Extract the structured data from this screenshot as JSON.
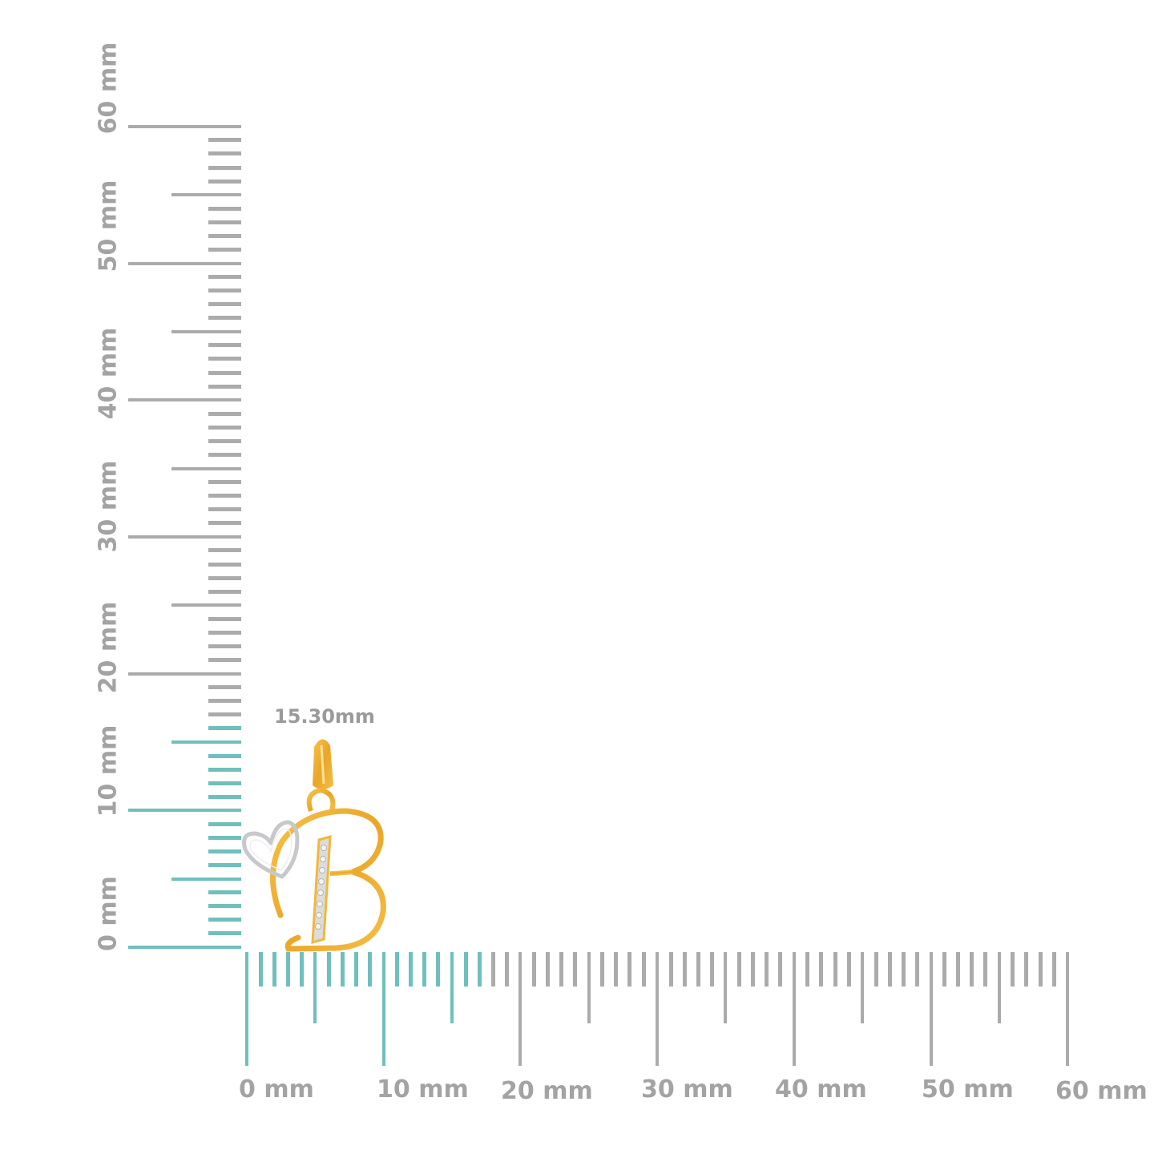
{
  "measurement_label": "15.30mm",
  "vertical_ruler": {
    "labels": [
      "0 mm",
      "10 mm",
      "20 mm",
      "30 mm",
      "40 mm",
      "50 mm",
      "60 mm"
    ],
    "range_mm": [
      0,
      60
    ],
    "highlighted_up_to_mm": 16
  },
  "horizontal_ruler": {
    "labels": [
      "0 mm",
      "10 mm",
      "20 mm",
      "30 mm",
      "40 mm",
      "50 mm",
      "60 mm"
    ],
    "range_mm": [
      0,
      60
    ],
    "highlighted_up_to_mm": 17
  },
  "colors": {
    "highlight": "#6fbfbd",
    "tick": "#ababab",
    "gold": "#f2b233",
    "silver": "#d9d9dc"
  },
  "product": "letter-b-pendant-with-heart"
}
